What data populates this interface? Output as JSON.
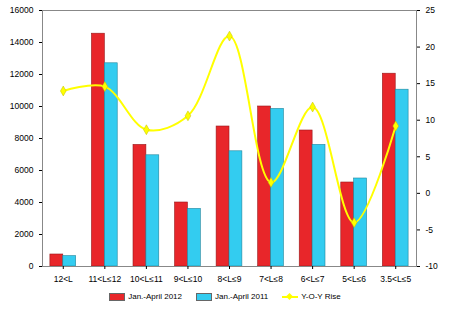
{
  "chart_data": {
    "type": "bar",
    "categories": [
      "12<L",
      "11<L≤12",
      "10<L≤11",
      "9<L≤10",
      "8<L≤9",
      "7<L≤8",
      "6<L≤7",
      "5<L≤6",
      "3.5<L≤5"
    ],
    "series": [
      {
        "name": "Jan.-April 2012",
        "color": "#e8262a",
        "type": "bar",
        "values": [
          750,
          14550,
          7600,
          4000,
          8750,
          10000,
          8500,
          5250,
          12050
        ]
      },
      {
        "name": "Jan.-April 2011",
        "color": "#33ccf0",
        "type": "bar",
        "values": [
          650,
          12700,
          6950,
          3600,
          7200,
          9850,
          7600,
          5500,
          11050
        ]
      },
      {
        "name": "Y-O-Y Rise",
        "color": "#ffff00",
        "type": "line",
        "axis": "y2",
        "marker": "diamond",
        "values": [
          14,
          14.6,
          8.7,
          10.6,
          21.5,
          1.5,
          11.8,
          -4,
          9.2
        ]
      }
    ],
    "ylim": [
      0,
      16000
    ],
    "yticks": [
      0,
      2000,
      4000,
      6000,
      8000,
      10000,
      12000,
      14000,
      16000
    ],
    "y2lim": [
      -10,
      25
    ],
    "y2ticks": [
      -10,
      -5,
      0,
      5,
      10,
      15,
      20,
      25
    ],
    "legend": "bottom",
    "grid": false
  }
}
